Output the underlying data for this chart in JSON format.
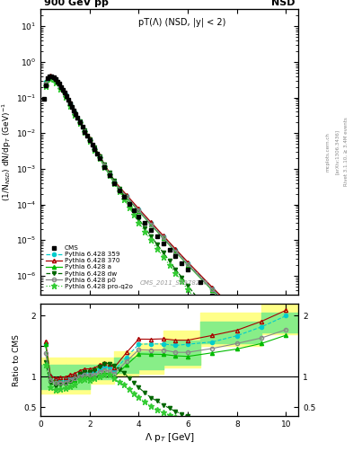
{
  "title_top_left": "900 GeV pp",
  "title_top_right": "NSD",
  "plot_title": "pT(Λ) (NSD, |y| < 2)",
  "watermark": "CMS_2011_S8978280",
  "ylabel_main": "(1/N$_{NSD}$) dN/dp$_T$ (GeV)$^{-1}$",
  "ylabel_ratio": "Ratio to CMS",
  "xlabel": "Λ p$_T$ [GeV]",
  "right_label": "Rivet 3.1.10, ≥ 3.4M events",
  "right_label2": "[arXiv:1306.3436]",
  "right_label3": "mcplots.cern.ch",
  "ylim_main_lo": 3e-07,
  "ylim_main_hi": 30,
  "ylim_ratio_lo": 0.35,
  "ylim_ratio_hi": 2.2,
  "xlim_lo": 0,
  "xlim_hi": 10.5,
  "cms_x": [
    0.15,
    0.225,
    0.3,
    0.375,
    0.45,
    0.525,
    0.6,
    0.675,
    0.75,
    0.825,
    0.9,
    0.975,
    1.05,
    1.125,
    1.2,
    1.275,
    1.35,
    1.425,
    1.5,
    1.6,
    1.7,
    1.8,
    1.9,
    2.0,
    2.1,
    2.2,
    2.3,
    2.4,
    2.6,
    2.8,
    3.0,
    3.2,
    3.4,
    3.6,
    3.8,
    4.0,
    4.25,
    4.5,
    4.75,
    5.0,
    5.25,
    5.5,
    5.75,
    6.0,
    6.5,
    7.0,
    7.5,
    8.0,
    8.5,
    9.0,
    9.5,
    10.0
  ],
  "cms_y": [
    0.09,
    0.22,
    0.34,
    0.4,
    0.4,
    0.37,
    0.33,
    0.28,
    0.24,
    0.2,
    0.165,
    0.135,
    0.11,
    0.088,
    0.07,
    0.056,
    0.044,
    0.035,
    0.027,
    0.02,
    0.015,
    0.011,
    0.0083,
    0.0062,
    0.0047,
    0.0035,
    0.0026,
    0.00195,
    0.0011,
    0.00065,
    0.0004,
    0.00025,
    0.00016,
    0.000105,
    7e-05,
    4.7e-05,
    3e-05,
    1.95e-05,
    1.25e-05,
    8.2e-06,
    5.4e-06,
    3.5e-06,
    2.3e-06,
    1.5e-06,
    6.5e-07,
    2.8e-07,
    1.2e-07,
    5.5e-08,
    2.5e-08,
    1.1e-08,
    5e-09,
    2.2e-09
  ],
  "py359_x": [
    0.2,
    0.4,
    0.6,
    0.8,
    1.0,
    1.2,
    1.4,
    1.6,
    1.8,
    2.0,
    2.2,
    2.4,
    2.6,
    2.8,
    3.0,
    3.5,
    4.0,
    4.5,
    5.0,
    5.5,
    6.0,
    7.0,
    8.0,
    9.0,
    10.0
  ],
  "py359_y": [
    0.27,
    0.4,
    0.31,
    0.2,
    0.12,
    0.068,
    0.038,
    0.021,
    0.0118,
    0.0066,
    0.0038,
    0.0022,
    0.00128,
    0.00075,
    0.00044,
    0.000175,
    7.2e-05,
    3e-05,
    1.26e-05,
    5.3e-06,
    2.3e-06,
    4.4e-07,
    9.2e-08,
    2e-08,
    4.4e-09
  ],
  "py370_x": [
    0.2,
    0.4,
    0.6,
    0.8,
    1.0,
    1.2,
    1.4,
    1.6,
    1.8,
    2.0,
    2.2,
    2.4,
    2.6,
    2.8,
    3.0,
    3.5,
    4.0,
    4.5,
    5.0,
    5.5,
    6.0,
    7.0,
    8.0,
    9.0,
    10.0
  ],
  "py370_y": [
    0.28,
    0.41,
    0.32,
    0.21,
    0.126,
    0.072,
    0.04,
    0.022,
    0.0124,
    0.007,
    0.004,
    0.00232,
    0.00135,
    0.00079,
    0.00046,
    0.000185,
    7.6e-05,
    3.15e-05,
    1.33e-05,
    5.6e-06,
    2.4e-06,
    4.7e-07,
    9.7e-08,
    2.1e-08,
    4.6e-09
  ],
  "pya_x": [
    0.2,
    0.4,
    0.6,
    0.8,
    1.0,
    1.2,
    1.4,
    1.6,
    1.8,
    2.0,
    2.2,
    2.4,
    2.6,
    2.8,
    3.0,
    3.5,
    4.0,
    4.5,
    5.0,
    5.5,
    6.0,
    7.0,
    8.0,
    9.0,
    10.0
  ],
  "pya_y": [
    0.27,
    0.39,
    0.3,
    0.195,
    0.115,
    0.065,
    0.036,
    0.02,
    0.011,
    0.0062,
    0.0035,
    0.00202,
    0.00117,
    0.00068,
    0.0004,
    0.000158,
    6.46e-05,
    2.67e-05,
    1.12e-05,
    4.7e-06,
    2e-06,
    3.9e-07,
    8e-08,
    1.7e-08,
    3.7e-09
  ],
  "pydw_x": [
    0.2,
    0.4,
    0.6,
    0.8,
    1.0,
    1.2,
    1.4,
    1.6,
    1.8,
    2.0,
    2.2,
    2.4,
    2.6,
    2.8,
    3.0,
    3.2,
    3.4,
    3.6,
    3.8,
    4.0,
    4.25,
    4.5,
    4.75,
    5.0,
    5.25,
    5.5,
    5.75,
    6.0,
    6.5,
    7.0,
    7.5,
    8.0,
    8.5,
    9.0,
    9.5,
    10.0
  ],
  "pydw_y": [
    0.22,
    0.36,
    0.28,
    0.185,
    0.112,
    0.065,
    0.037,
    0.021,
    0.0118,
    0.0067,
    0.0039,
    0.00227,
    0.00133,
    0.00079,
    0.00047,
    0.00028,
    0.00017,
    0.000103,
    6.3e-05,
    3.87e-05,
    2.2e-05,
    1.28e-05,
    7.5e-06,
    4.4e-06,
    2.6e-06,
    1.5e-06,
    9e-07,
    5.3e-07,
    1.9e-07,
    7e-08,
    2.6e-08,
    1e-08,
    3.8e-09,
    1.5e-09,
    5.7e-10,
    2.2e-10
  ],
  "pyp0_x": [
    0.2,
    0.4,
    0.6,
    0.8,
    1.0,
    1.2,
    1.4,
    1.6,
    1.8,
    2.0,
    2.2,
    2.4,
    2.6,
    2.8,
    3.0,
    3.5,
    4.0,
    4.5,
    5.0,
    5.5,
    6.0,
    7.0,
    8.0,
    9.0,
    10.0
  ],
  "pyp0_y": [
    0.245,
    0.38,
    0.295,
    0.193,
    0.115,
    0.066,
    0.037,
    0.02,
    0.0113,
    0.0064,
    0.0036,
    0.0021,
    0.00122,
    0.00071,
    0.00042,
    0.000166,
    6.78e-05,
    2.8e-05,
    1.18e-05,
    4.9e-06,
    2.1e-06,
    4.1e-07,
    8.5e-08,
    1.8e-08,
    3.9e-09
  ],
  "pyproq2o_x": [
    0.2,
    0.4,
    0.6,
    0.8,
    1.0,
    1.2,
    1.4,
    1.6,
    1.8,
    2.0,
    2.2,
    2.4,
    2.6,
    2.8,
    3.0,
    3.2,
    3.4,
    3.6,
    3.8,
    4.0,
    4.25,
    4.5,
    4.75,
    5.0,
    5.25,
    5.5,
    5.75,
    6.0,
    6.5,
    7.0,
    7.5,
    8.0,
    8.5,
    9.0,
    9.5,
    10.0
  ],
  "pyproq2o_y": [
    0.21,
    0.33,
    0.26,
    0.17,
    0.102,
    0.059,
    0.033,
    0.019,
    0.0105,
    0.0059,
    0.0034,
    0.00196,
    0.00114,
    0.00067,
    0.00039,
    0.00023,
    0.000139,
    8.4e-05,
    5.1e-05,
    3.1e-05,
    1.76e-05,
    1.01e-05,
    5.8e-06,
    3.4e-06,
    2e-06,
    1.2e-06,
    6.9e-07,
    4.1e-07,
    1.46e-07,
    5.3e-08,
    1.9e-08,
    7.2e-09,
    2.8e-09,
    1.1e-09,
    4.2e-10,
    1.6e-10
  ],
  "band_steps_x": [
    0.0,
    1.0,
    2.0,
    3.0,
    4.0,
    5.0,
    6.5,
    9.0,
    10.5
  ],
  "band_yellow_lo": [
    0.72,
    0.72,
    0.88,
    1.0,
    1.05,
    1.15,
    1.5,
    1.7,
    1.7
  ],
  "band_yellow_hi": [
    1.32,
    1.32,
    1.32,
    1.42,
    1.55,
    1.75,
    2.05,
    2.2,
    2.2
  ],
  "band_green_lo": [
    0.8,
    0.8,
    0.96,
    1.07,
    1.12,
    1.2,
    1.55,
    1.72,
    1.72
  ],
  "band_green_hi": [
    1.2,
    1.2,
    1.2,
    1.32,
    1.42,
    1.6,
    1.9,
    2.05,
    2.05
  ]
}
